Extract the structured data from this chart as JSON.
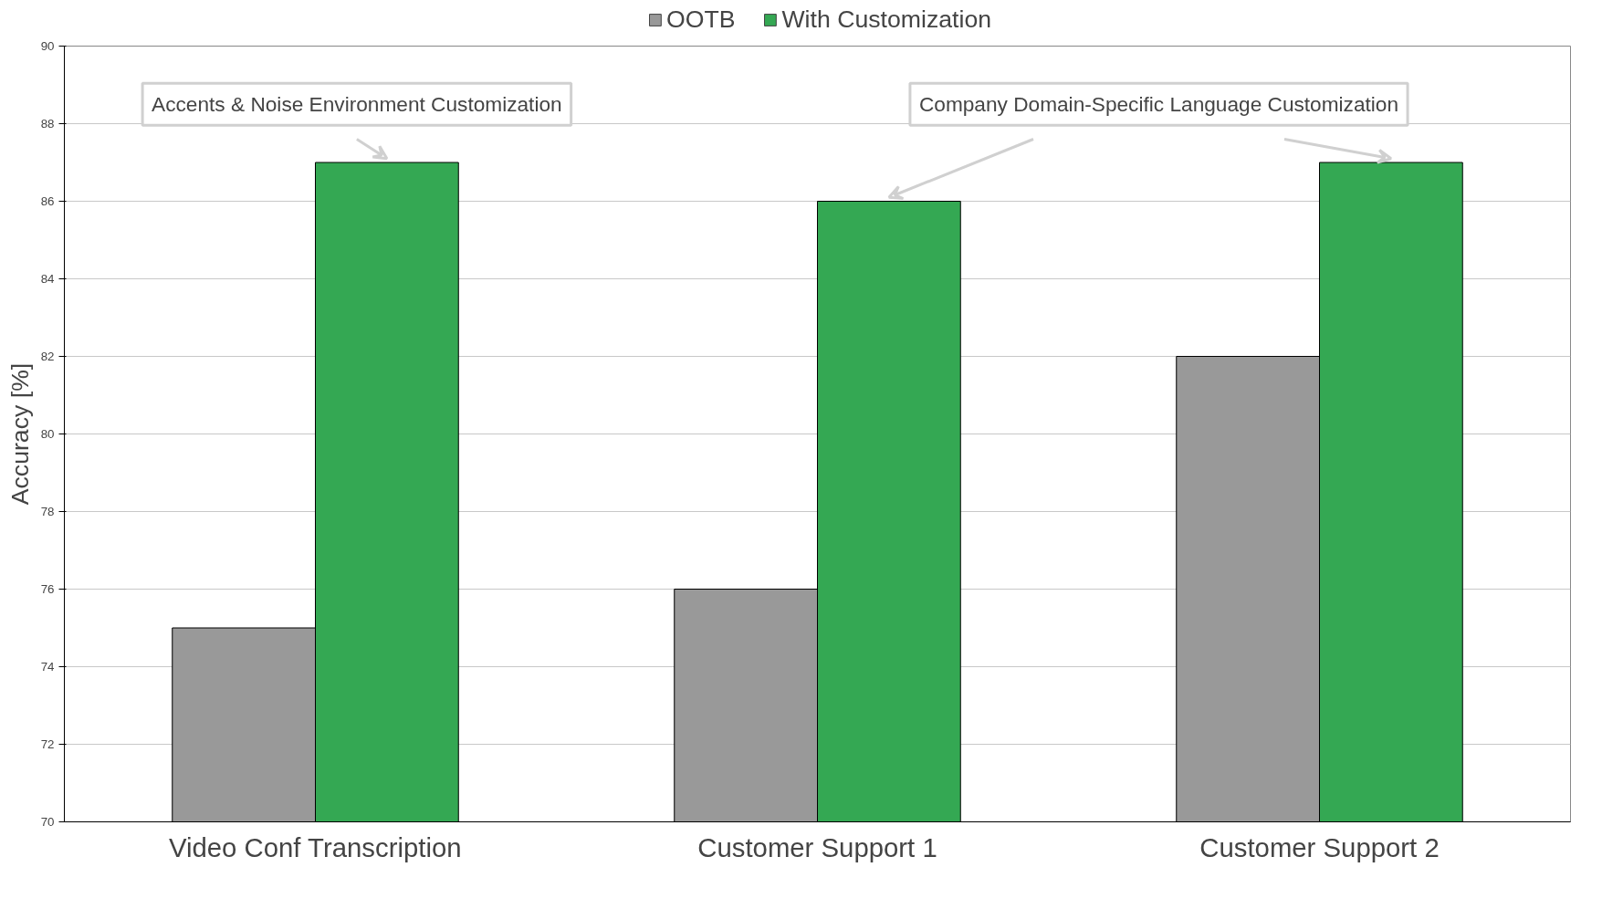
{
  "chart_data": {
    "type": "bar",
    "ylabel": "Accuracy [%]",
    "categories": [
      "Video Conf Transcription",
      "Customer Support 1",
      "Customer Support 2"
    ],
    "series": [
      {
        "name": "OOTB",
        "color": "#999999",
        "values": [
          75,
          76,
          82
        ]
      },
      {
        "name": "With Customization",
        "color": "#34a853",
        "values": [
          87,
          86,
          87
        ]
      }
    ],
    "ylim": [
      70,
      90
    ],
    "yticks": [
      70,
      72,
      74,
      76,
      78,
      80,
      82,
      84,
      86,
      88,
      90
    ],
    "grid": "y",
    "legend": "top",
    "annotations": [
      {
        "text": "Accents & Noise Environment Customization",
        "x": "Video Conf Transcription",
        "y": 87
      },
      "Company Domain-Specific Language Customization"
    ]
  }
}
